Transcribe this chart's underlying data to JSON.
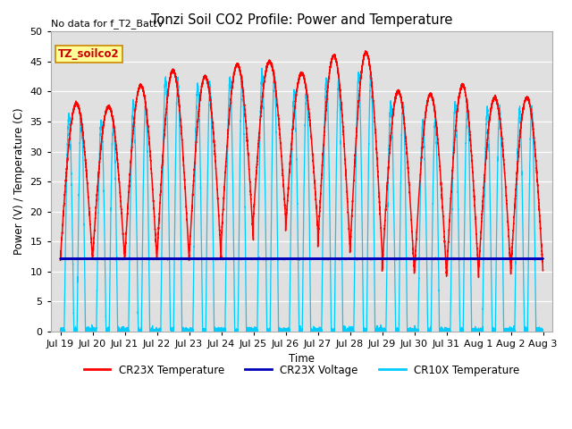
{
  "title": "Tonzi Soil CO2 Profile: Power and Temperature",
  "no_data_text": "No data for f_T2_BattV",
  "ylabel": "Power (V) / Temperature (C)",
  "xlabel": "Time",
  "ylim": [
    0,
    50
  ],
  "bg_color": "#e0e0e0",
  "fig_bg": "#ffffff",
  "legend_box_label": "TZ_soilco2",
  "legend_entries": [
    "CR23X Temperature",
    "CR23X Voltage",
    "CR10X Temperature"
  ],
  "legend_colors": [
    "#ff0000",
    "#0000bb",
    "#00ccff"
  ],
  "xtick_labels": [
    "Jul 19",
    "Jul 20",
    "Jul 21",
    "Jul 22",
    "Jul 23",
    "Jul 24",
    "Jul 25",
    "Jul 26",
    "Jul 27",
    "Jul 28",
    "Jul 29",
    "Jul 30",
    "Jul 31",
    "Aug 1",
    "Aug 2",
    "Aug 3"
  ],
  "xtick_positions": [
    0,
    1,
    2,
    3,
    4,
    5,
    6,
    7,
    8,
    9,
    10,
    11,
    12,
    13,
    14,
    15
  ],
  "xlim": [
    -0.3,
    15.3
  ],
  "grid_color": "#ffffff",
  "yticks": [
    0,
    5,
    10,
    15,
    20,
    25,
    30,
    35,
    40,
    45,
    50
  ]
}
